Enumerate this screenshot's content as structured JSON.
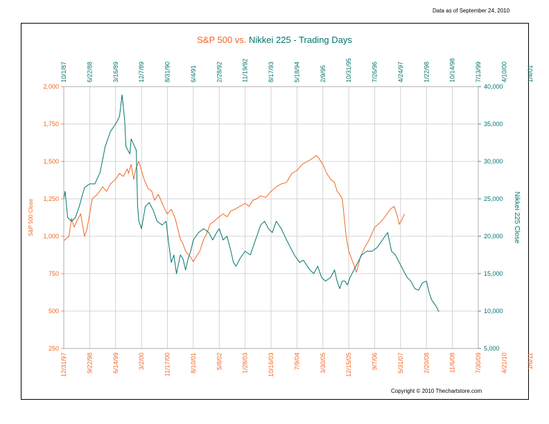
{
  "data_note": "Data as of September 24, 2010",
  "copyright": "Copyright © 2010 Thechartstore.com",
  "colors": {
    "sp500": "#f26522",
    "nikkei": "#00736d",
    "grid": "#c8c8c8",
    "axis": "#999999"
  },
  "chart_data": {
    "type": "line",
    "title_parts": [
      {
        "text": "S&P 500 vs.",
        "series": "sp500"
      },
      {
        "text": "Nikkei 225",
        "series": "nikkei"
      },
      {
        "text": "- Trading Days",
        "series": "nikkei"
      }
    ],
    "x_trading_days": 3200,
    "grid_every_days": 200,
    "left_axis": {
      "label": "S&P 500 Close",
      "min": 250,
      "max": 2000,
      "ticks": [
        "2,000",
        "1,750",
        "1,500",
        "1,250",
        "1,000",
        "750",
        "500",
        "250"
      ]
    },
    "right_axis": {
      "label": "Nikkei 225 Close",
      "min": 5000,
      "max": 40000,
      "ticks": [
        "40,000",
        "35,000",
        "30,000",
        "25,000",
        "20,000",
        "15,000",
        "10,000",
        "5,000"
      ]
    },
    "top_ticks": [
      "10/1/87",
      "6/22/88",
      "3/16/89",
      "12/7/89",
      "8/31/90",
      "6/4/91",
      "2/28/92",
      "11/19/92",
      "8/17/93",
      "5/18/94",
      "2/9/95",
      "10/31/95",
      "7/26/96",
      "4/24/97",
      "1/22/98",
      "10/14/98",
      "7/13/99",
      "4/10/00",
      "1/4/01",
      "9/27/01"
    ],
    "bottom_ticks": [
      "12/31/97",
      "9/22/98",
      "6/14/99",
      "3/2/00",
      "11/17/00",
      "8/10/01",
      "5/8/02",
      "1/28/03",
      "10/16/03",
      "7/9/04",
      "3/30/05",
      "12/15/05",
      "9/7/06",
      "5/31/07",
      "2/20/08",
      "11/6/08",
      "7/30/09",
      "4/21/10",
      "1/6/11",
      "9/19/11"
    ],
    "series": [
      {
        "name": "S&P 500",
        "key": "sp500",
        "axis": "left",
        "points": [
          [
            0,
            970
          ],
          [
            40,
            1000
          ],
          [
            60,
            1120
          ],
          [
            80,
            1060
          ],
          [
            100,
            1100
          ],
          [
            130,
            1150
          ],
          [
            160,
            1000
          ],
          [
            180,
            1050
          ],
          [
            200,
            1150
          ],
          [
            220,
            1250
          ],
          [
            260,
            1280
          ],
          [
            300,
            1330
          ],
          [
            330,
            1300
          ],
          [
            360,
            1350
          ],
          [
            400,
            1380
          ],
          [
            430,
            1420
          ],
          [
            460,
            1400
          ],
          [
            490,
            1450
          ],
          [
            500,
            1420
          ],
          [
            520,
            1480
          ],
          [
            540,
            1380
          ],
          [
            560,
            1460
          ],
          [
            580,
            1500
          ],
          [
            600,
            1440
          ],
          [
            620,
            1380
          ],
          [
            650,
            1320
          ],
          [
            680,
            1300
          ],
          [
            700,
            1240
          ],
          [
            730,
            1280
          ],
          [
            760,
            1220
          ],
          [
            780,
            1180
          ],
          [
            800,
            1150
          ],
          [
            830,
            1180
          ],
          [
            860,
            1120
          ],
          [
            880,
            1050
          ],
          [
            900,
            980
          ],
          [
            920,
            950
          ],
          [
            940,
            900
          ],
          [
            960,
            880
          ],
          [
            980,
            860
          ],
          [
            1000,
            830
          ],
          [
            1020,
            860
          ],
          [
            1050,
            900
          ],
          [
            1080,
            980
          ],
          [
            1100,
            1010
          ],
          [
            1130,
            1080
          ],
          [
            1160,
            1100
          ],
          [
            1200,
            1130
          ],
          [
            1230,
            1150
          ],
          [
            1260,
            1130
          ],
          [
            1290,
            1170
          ],
          [
            1320,
            1180
          ],
          [
            1360,
            1200
          ],
          [
            1400,
            1220
          ],
          [
            1430,
            1200
          ],
          [
            1460,
            1240
          ],
          [
            1490,
            1250
          ],
          [
            1520,
            1270
          ],
          [
            1560,
            1260
          ],
          [
            1600,
            1300
          ],
          [
            1640,
            1330
          ],
          [
            1680,
            1350
          ],
          [
            1720,
            1360
          ],
          [
            1760,
            1420
          ],
          [
            1800,
            1440
          ],
          [
            1840,
            1480
          ],
          [
            1880,
            1500
          ],
          [
            1920,
            1520
          ],
          [
            1950,
            1540
          ],
          [
            1970,
            1520
          ],
          [
            2000,
            1480
          ],
          [
            2030,
            1420
          ],
          [
            2060,
            1380
          ],
          [
            2090,
            1360
          ],
          [
            2110,
            1300
          ],
          [
            2130,
            1280
          ],
          [
            2150,
            1250
          ],
          [
            2180,
            1000
          ],
          [
            2200,
            900
          ],
          [
            2230,
            830
          ],
          [
            2260,
            760
          ],
          [
            2290,
            860
          ],
          [
            2320,
            920
          ],
          [
            2360,
            980
          ],
          [
            2400,
            1060
          ],
          [
            2440,
            1090
          ],
          [
            2480,
            1130
          ],
          [
            2520,
            1180
          ],
          [
            2550,
            1200
          ],
          [
            2570,
            1150
          ],
          [
            2590,
            1080
          ],
          [
            2610,
            1110
          ],
          [
            2630,
            1150
          ]
        ]
      },
      {
        "name": "Nikkei 225",
        "key": "nikkei",
        "axis": "right",
        "points": [
          [
            0,
            25000
          ],
          [
            10,
            26000
          ],
          [
            30,
            22500
          ],
          [
            60,
            22000
          ],
          [
            90,
            22500
          ],
          [
            120,
            24000
          ],
          [
            160,
            26500
          ],
          [
            200,
            27000
          ],
          [
            240,
            27000
          ],
          [
            280,
            28500
          ],
          [
            320,
            32000
          ],
          [
            360,
            34000
          ],
          [
            400,
            35000
          ],
          [
            430,
            36000
          ],
          [
            450,
            38900
          ],
          [
            470,
            35500
          ],
          [
            480,
            32000
          ],
          [
            510,
            31000
          ],
          [
            520,
            33000
          ],
          [
            560,
            31500
          ],
          [
            570,
            24000
          ],
          [
            580,
            22000
          ],
          [
            600,
            21000
          ],
          [
            630,
            24000
          ],
          [
            660,
            24500
          ],
          [
            690,
            23500
          ],
          [
            720,
            22000
          ],
          [
            760,
            21500
          ],
          [
            790,
            22000
          ],
          [
            810,
            19000
          ],
          [
            830,
            16500
          ],
          [
            850,
            17500
          ],
          [
            870,
            15000
          ],
          [
            900,
            17500
          ],
          [
            920,
            17000
          ],
          [
            940,
            15500
          ],
          [
            960,
            17000
          ],
          [
            980,
            18000
          ],
          [
            1000,
            19500
          ],
          [
            1040,
            20500
          ],
          [
            1080,
            21000
          ],
          [
            1120,
            20500
          ],
          [
            1150,
            19500
          ],
          [
            1180,
            20500
          ],
          [
            1200,
            21000
          ],
          [
            1230,
            19500
          ],
          [
            1260,
            20000
          ],
          [
            1290,
            18000
          ],
          [
            1310,
            16500
          ],
          [
            1330,
            16000
          ],
          [
            1360,
            17000
          ],
          [
            1400,
            18000
          ],
          [
            1440,
            17500
          ],
          [
            1460,
            18500
          ],
          [
            1490,
            20000
          ],
          [
            1520,
            21500
          ],
          [
            1550,
            22000
          ],
          [
            1580,
            21000
          ],
          [
            1610,
            20500
          ],
          [
            1640,
            22000
          ],
          [
            1680,
            21000
          ],
          [
            1720,
            19500
          ],
          [
            1750,
            18500
          ],
          [
            1780,
            17500
          ],
          [
            1800,
            17000
          ],
          [
            1820,
            16500
          ],
          [
            1850,
            16800
          ],
          [
            1880,
            16000
          ],
          [
            1900,
            15500
          ],
          [
            1930,
            15000
          ],
          [
            1960,
            16000
          ],
          [
            1990,
            14500
          ],
          [
            2020,
            14000
          ],
          [
            2060,
            14500
          ],
          [
            2090,
            15500
          ],
          [
            2110,
            14000
          ],
          [
            2130,
            13000
          ],
          [
            2150,
            14000
          ],
          [
            2170,
            14000
          ],
          [
            2190,
            13500
          ],
          [
            2210,
            14500
          ],
          [
            2240,
            15500
          ],
          [
            2270,
            16500
          ],
          [
            2300,
            17500
          ],
          [
            2340,
            18000
          ],
          [
            2380,
            18000
          ],
          [
            2420,
            18500
          ],
          [
            2460,
            19500
          ],
          [
            2500,
            20500
          ],
          [
            2530,
            18000
          ],
          [
            2560,
            17500
          ],
          [
            2590,
            16500
          ],
          [
            2620,
            15500
          ],
          [
            2650,
            14500
          ],
          [
            2680,
            14000
          ],
          [
            2710,
            13000
          ],
          [
            2740,
            12800
          ],
          [
            2770,
            13800
          ],
          [
            2800,
            14000
          ],
          [
            2820,
            12500
          ],
          [
            2840,
            11500
          ],
          [
            2860,
            11000
          ],
          [
            2880,
            10500
          ],
          [
            2890,
            10000
          ],
          [
            2900,
            10000
          ]
        ]
      }
    ]
  }
}
